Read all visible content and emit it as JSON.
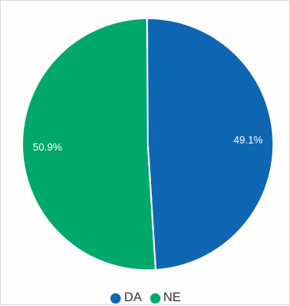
{
  "chart_data": {
    "type": "pie",
    "categories": [
      "DA",
      "NE"
    ],
    "values": [
      49.1,
      50.9
    ],
    "data_labels": [
      "49.1%",
      "50.9%"
    ],
    "colors": [
      "#0f66b3",
      "#00a86b"
    ],
    "title": "",
    "legend": "bottom"
  }
}
